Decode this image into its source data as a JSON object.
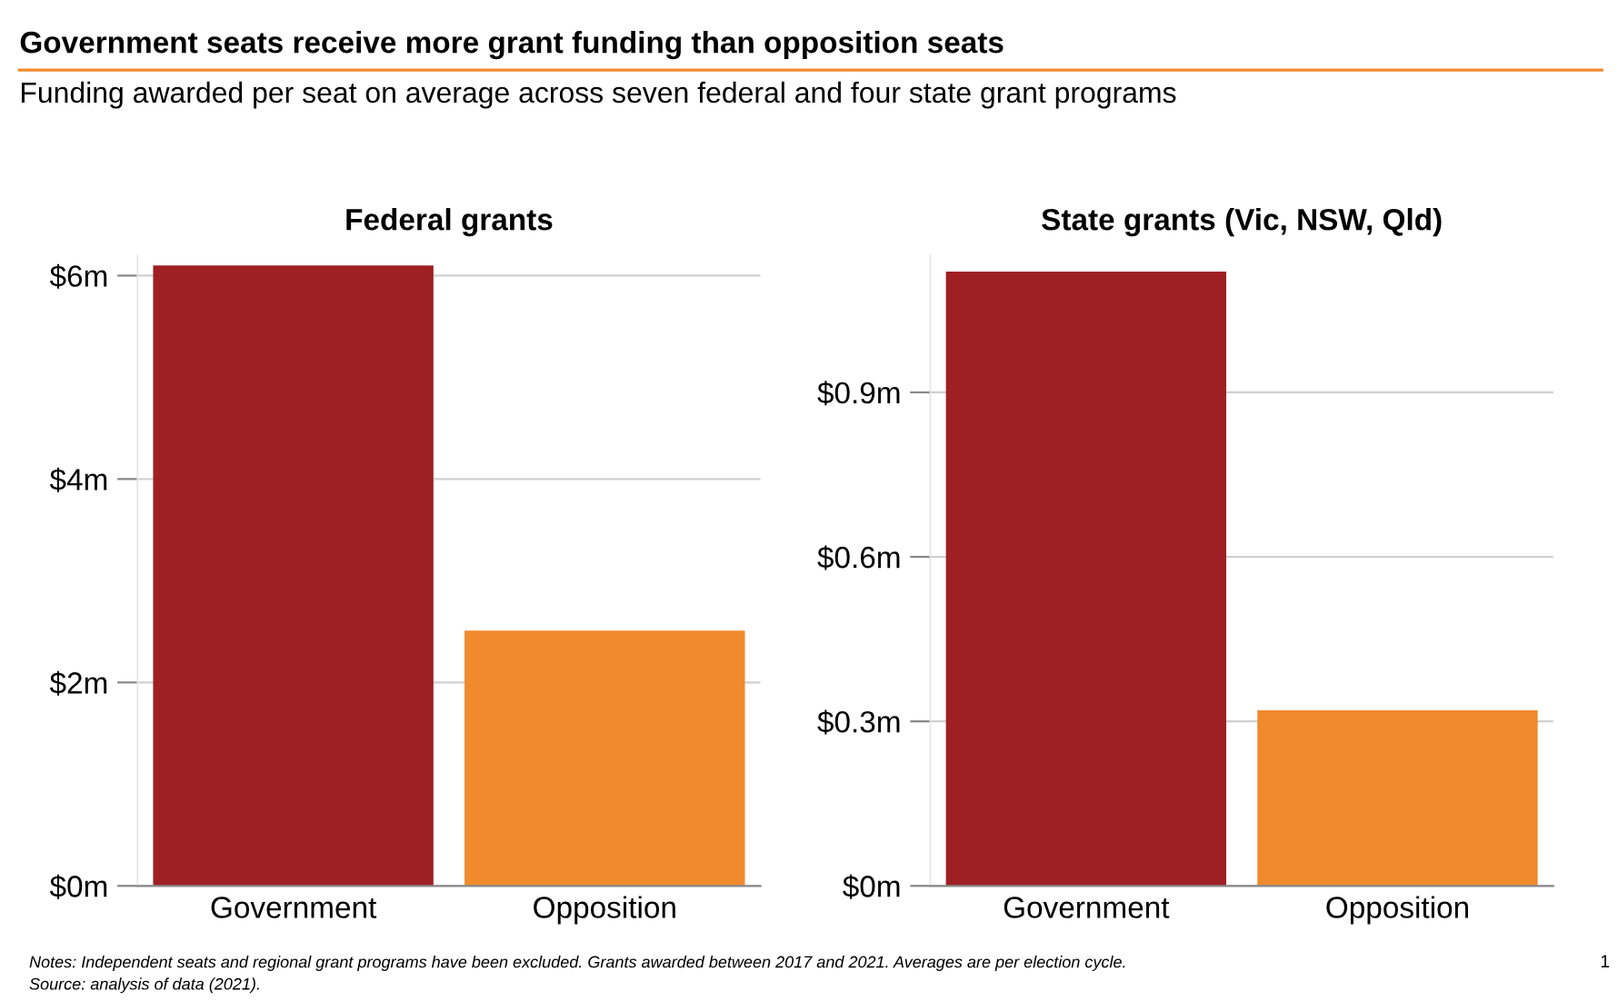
{
  "chart_data": [
    {
      "type": "other",
      "title": "Government seats receive more grant funding than opposition seats",
      "subtitle": "Funding awarded per seat on average across seven federal and four state grant programs",
      "annotations": [
        "Notes: Independent seats and regional grant programs have been excluded. Grants awarded between 2017 and 2021. Averages are per election cycle.",
        "Source: analysis of data (2021).",
        "1"
      ]
    },
    {
      "type": "bar",
      "title": "Federal grants",
      "categories": [
        "Government",
        "Opposition"
      ],
      "values": [
        6.1,
        2.51
      ],
      "colors": [
        "#9e1f24",
        "#f08a2c"
      ],
      "ylim": [
        0,
        6.2
      ],
      "yticks": [
        {
          "value": 0,
          "label": "$0m"
        },
        {
          "value": 2,
          "label": "$2m"
        },
        {
          "value": 4,
          "label": "$4m"
        },
        {
          "value": 6,
          "label": "$6m"
        }
      ],
      "grid": "y"
    },
    {
      "type": "bar",
      "title": "State grants (Vic, NSW, Qld)",
      "categories": [
        "Government",
        "Opposition"
      ],
      "values": [
        1.12,
        0.32
      ],
      "colors": [
        "#9e1f24",
        "#f08a2c"
      ],
      "ylim": [
        0,
        1.15
      ],
      "yticks": [
        {
          "value": 0,
          "label": "$0m"
        },
        {
          "value": 0.3,
          "label": "$0.3m"
        },
        {
          "value": 0.6,
          "label": "$0.6m"
        },
        {
          "value": 0.9,
          "label": "$0.9m"
        }
      ],
      "grid": "y"
    }
  ]
}
